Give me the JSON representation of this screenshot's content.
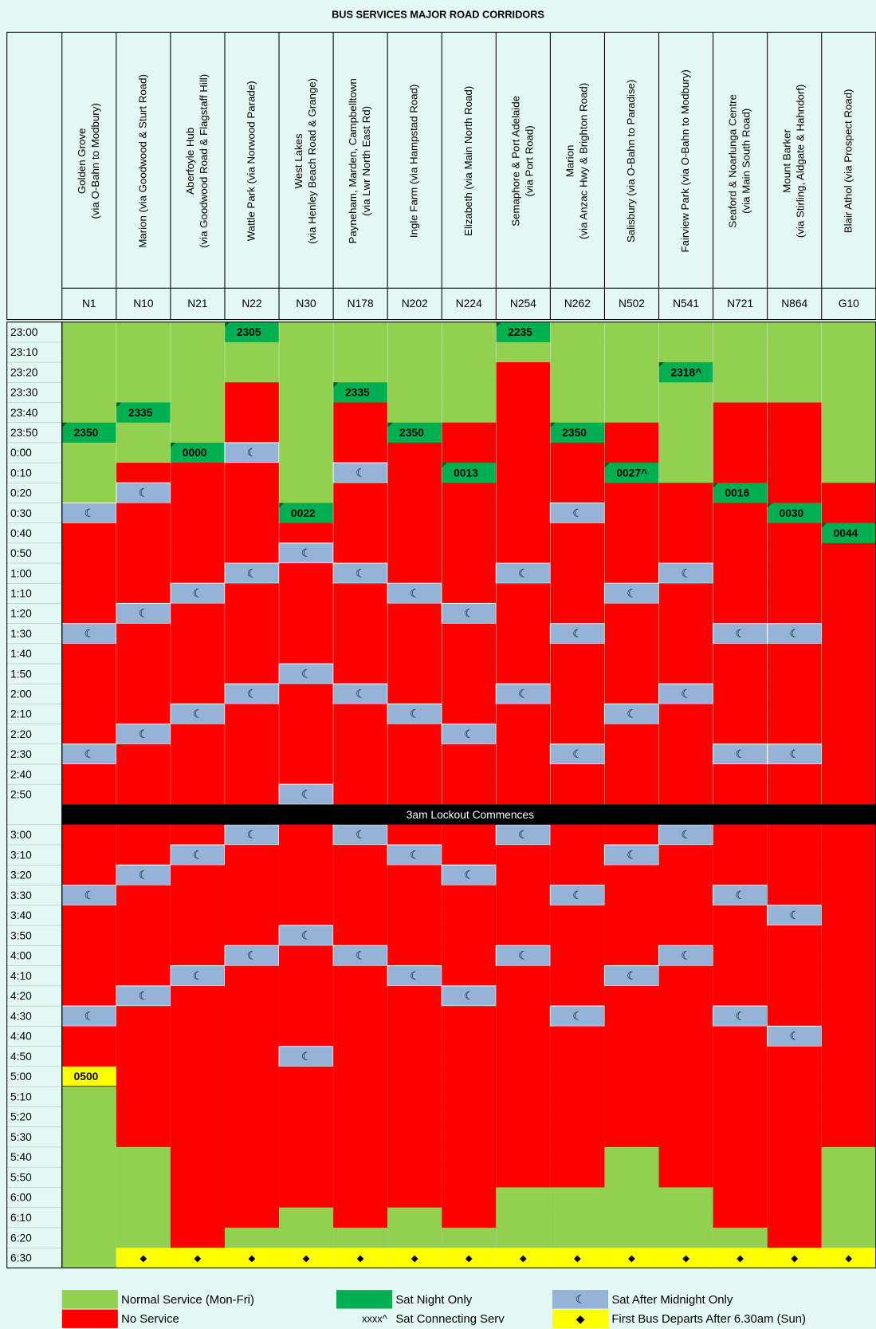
{
  "title": "BUS SERVICES MAJOR ROAD CORRIDORS",
  "lockout": "3am Lockout Commences",
  "colors": {
    "G": "#92d050",
    "R": "#ff0000",
    "S": "#00b050",
    "C": "#00b050",
    "M": "#95b3d7",
    "D": "#ffff00",
    "Y": "#ffff00"
  },
  "times": [
    "23:00",
    "23:10",
    "23:20",
    "23:30",
    "23:40",
    "23:50",
    "0:00",
    "0:10",
    "0:20",
    "0:30",
    "0:40",
    "0:50",
    "1:00",
    "1:10",
    "1:20",
    "1:30",
    "1:40",
    "1:50",
    "2:00",
    "2:10",
    "2:20",
    "2:30",
    "2:40",
    "2:50",
    "3:00",
    "3:10",
    "3:20",
    "3:30",
    "3:40",
    "3:50",
    "4:00",
    "4:10",
    "4:20",
    "4:30",
    "4:40",
    "4:50",
    "5:00",
    "5:10",
    "5:20",
    "5:30",
    "5:40",
    "5:50",
    "6:00",
    "6:10",
    "6:20",
    "6:30"
  ],
  "columns": [
    {
      "lines": [
        "Golden Grove",
        "(via O-Bahn to Modbury)"
      ],
      "code": "N1",
      "cells": [
        "G",
        "G",
        "G",
        "G",
        "G",
        {
          "S": "2350"
        },
        "G",
        "G",
        "G",
        "M",
        "R",
        "R",
        "R",
        "R",
        "R",
        "M",
        "R",
        "R",
        "R",
        "R",
        "R",
        "M",
        "R",
        "R",
        "R",
        "R",
        "R",
        "M",
        "R",
        "R",
        "R",
        "R",
        "R",
        "M",
        "R",
        "R",
        {
          "Y": "0500"
        },
        "G",
        "G",
        "G",
        "G",
        "G",
        "G",
        "G",
        "G",
        "G"
      ]
    },
    {
      "lines": [
        "Marion (via Goodwood & Sturt Road)"
      ],
      "code": "N10",
      "cells": [
        "G",
        "G",
        "G",
        "G",
        {
          "S": "2335"
        },
        "G",
        "G",
        "R",
        "M",
        "R",
        "R",
        "R",
        "R",
        "R",
        "M",
        "R",
        "R",
        "R",
        "R",
        "R",
        "M",
        "R",
        "R",
        "R",
        "R",
        "R",
        "M",
        "R",
        "R",
        "R",
        "R",
        "R",
        "M",
        "R",
        "R",
        "R",
        "R",
        "R",
        "R",
        "R",
        "G",
        "G",
        "G",
        "G",
        "G",
        "D"
      ]
    },
    {
      "lines": [
        "Aberfoyle Hub",
        "(via Goodwood Road & Flagstaff Hill)"
      ],
      "code": "N21",
      "cells": [
        "G",
        "G",
        "G",
        "G",
        "G",
        "G",
        {
          "S": "0000"
        },
        "R",
        "R",
        "R",
        "R",
        "R",
        "R",
        "M",
        "R",
        "R",
        "R",
        "R",
        "R",
        "M",
        "R",
        "R",
        "R",
        "R",
        "R",
        "M",
        "R",
        "R",
        "R",
        "R",
        "R",
        "M",
        "R",
        "R",
        "R",
        "R",
        "R",
        "R",
        "R",
        "R",
        "R",
        "R",
        "R",
        "R",
        "R",
        "D"
      ]
    },
    {
      "lines": [
        "Wattle Park (via Norwood Parade)"
      ],
      "code": "N22",
      "cells": [
        {
          "S": "2305"
        },
        "G",
        "G",
        "R",
        "R",
        "R",
        "M",
        "R",
        "R",
        "R",
        "R",
        "R",
        "M",
        "R",
        "R",
        "R",
        "R",
        "R",
        "M",
        "R",
        "R",
        "R",
        "R",
        "R",
        "M",
        "R",
        "R",
        "R",
        "R",
        "R",
        "M",
        "R",
        "R",
        "R",
        "R",
        "R",
        "R",
        "R",
        "R",
        "R",
        "R",
        "R",
        "R",
        "R",
        "G",
        "D"
      ]
    },
    {
      "lines": [
        "West Lakes",
        "(via Henley Beach Road & Grange)"
      ],
      "code": "N30",
      "cells": [
        "G",
        "G",
        "G",
        "G",
        "G",
        "G",
        "G",
        "G",
        "G",
        {
          "S": "0022"
        },
        "R",
        "M",
        "R",
        "R",
        "R",
        "R",
        "R",
        "M",
        "R",
        "R",
        "R",
        "R",
        "R",
        "M",
        "R",
        "R",
        "R",
        "R",
        "R",
        "M",
        "R",
        "R",
        "R",
        "R",
        "R",
        "M",
        "R",
        "R",
        "R",
        "R",
        "R",
        "R",
        "R",
        "G",
        "G",
        "D"
      ]
    },
    {
      "lines": [
        "Payneham, Marden, Campbelltown",
        "(via Lwr North East Rd)"
      ],
      "code": "N178",
      "cells": [
        "G",
        "G",
        "G",
        {
          "S": "2335"
        },
        "R",
        "R",
        "R",
        "M",
        "R",
        "R",
        "R",
        "R",
        "M",
        "R",
        "R",
        "R",
        "R",
        "R",
        "M",
        "R",
        "R",
        "R",
        "R",
        "R",
        "M",
        "R",
        "R",
        "R",
        "R",
        "R",
        "M",
        "R",
        "R",
        "R",
        "R",
        "R",
        "R",
        "R",
        "R",
        "R",
        "R",
        "R",
        "R",
        "R",
        "G",
        "D"
      ]
    },
    {
      "lines": [
        "Ingle Farm (via Hampstad Road)"
      ],
      "code": "N202",
      "cells": [
        "G",
        "G",
        "G",
        "G",
        "G",
        {
          "S": "2350"
        },
        "R",
        "R",
        "R",
        "R",
        "R",
        "R",
        "R",
        "M",
        "R",
        "R",
        "R",
        "R",
        "R",
        "M",
        "R",
        "R",
        "R",
        "R",
        "R",
        "M",
        "R",
        "R",
        "R",
        "R",
        "R",
        "M",
        "R",
        "R",
        "R",
        "R",
        "R",
        "R",
        "R",
        "R",
        "R",
        "R",
        "R",
        "G",
        "G",
        "D"
      ]
    },
    {
      "lines": [
        "Elizabeth (via Main North Road)"
      ],
      "code": "N224",
      "cells": [
        "G",
        "G",
        "G",
        "G",
        "G",
        "R",
        "R",
        {
          "S": "0013"
        },
        "R",
        "R",
        "R",
        "R",
        "R",
        "R",
        "M",
        "R",
        "R",
        "R",
        "R",
        "R",
        "M",
        "R",
        "R",
        "R",
        "R",
        "R",
        "M",
        "R",
        "R",
        "R",
        "R",
        "R",
        "M",
        "R",
        "R",
        "R",
        "R",
        "R",
        "R",
        "R",
        "R",
        "R",
        "R",
        "R",
        "G",
        "D"
      ]
    },
    {
      "lines": [
        "Semaphore & Port Adelaide",
        "(via Port Road)"
      ],
      "code": "N254",
      "cells": [
        {
          "S": "2235"
        },
        "G",
        "R",
        "R",
        "R",
        "R",
        "R",
        "R",
        "R",
        "R",
        "R",
        "R",
        "M",
        "R",
        "R",
        "R",
        "R",
        "R",
        "M",
        "R",
        "R",
        "R",
        "R",
        "R",
        "M",
        "R",
        "R",
        "R",
        "R",
        "R",
        "M",
        "R",
        "R",
        "R",
        "R",
        "R",
        "R",
        "R",
        "R",
        "R",
        "R",
        "R",
        "G",
        "G",
        "G",
        "D"
      ]
    },
    {
      "lines": [
        "Marion",
        "(via Anzac Hwy & Brighton Road)"
      ],
      "code": "N262",
      "cells": [
        "G",
        "G",
        "G",
        "G",
        "G",
        {
          "S": "2350"
        },
        "R",
        "R",
        "R",
        "M",
        "R",
        "R",
        "R",
        "R",
        "R",
        "M",
        "R",
        "R",
        "R",
        "R",
        "R",
        "M",
        "R",
        "R",
        "R",
        "R",
        "R",
        "M",
        "R",
        "R",
        "R",
        "R",
        "R",
        "M",
        "R",
        "R",
        "R",
        "R",
        "R",
        "R",
        "R",
        "R",
        "G",
        "G",
        "G",
        "D"
      ]
    },
    {
      "lines": [
        "Salisbury (via O-Bahn to Paradise)"
      ],
      "code": "N502",
      "cells": [
        "G",
        "G",
        "G",
        "G",
        "G",
        "R",
        "R",
        {
          "C": "0027^"
        },
        "R",
        "R",
        "R",
        "R",
        "R",
        "M",
        "R",
        "R",
        "R",
        "R",
        "R",
        "M",
        "R",
        "R",
        "R",
        "R",
        "R",
        "M",
        "R",
        "R",
        "R",
        "R",
        "R",
        "M",
        "R",
        "R",
        "R",
        "R",
        "R",
        "R",
        "R",
        "R",
        "G",
        "G",
        "G",
        "G",
        "G",
        "D"
      ]
    },
    {
      "lines": [
        "Fairview Park (via O-Bahn to Modbury)"
      ],
      "code": "N541",
      "cells": [
        "G",
        "G",
        {
          "C": "2318^"
        },
        "G",
        "G",
        "G",
        "G",
        "G",
        "R",
        "R",
        "R",
        "R",
        "M",
        "R",
        "R",
        "R",
        "R",
        "R",
        "M",
        "R",
        "R",
        "R",
        "R",
        "R",
        "M",
        "R",
        "R",
        "R",
        "R",
        "R",
        "M",
        "R",
        "R",
        "R",
        "R",
        "R",
        "R",
        "R",
        "R",
        "R",
        "R",
        "R",
        "G",
        "G",
        "G",
        "D"
      ]
    },
    {
      "lines": [
        "Seaford & Noarlunga Centre",
        "(via Main South Road)"
      ],
      "code": "N721",
      "cells": [
        "G",
        "G",
        "G",
        "G",
        "R",
        "R",
        "R",
        "R",
        {
          "S": "0016"
        },
        "R",
        "R",
        "R",
        "R",
        "R",
        "R",
        "M",
        "R",
        "R",
        "R",
        "R",
        "R",
        "M",
        "R",
        "R",
        "R",
        "R",
        "R",
        "M",
        "R",
        "R",
        "R",
        "R",
        "R",
        "M",
        "R",
        "R",
        "R",
        "R",
        "R",
        "R",
        "R",
        "R",
        "R",
        "R",
        "G",
        "D"
      ]
    },
    {
      "lines": [
        "Mount Barker",
        "(via Stirling, Aldgate & Hahndorf)"
      ],
      "code": "N864",
      "cells": [
        "G",
        "G",
        "G",
        "G",
        "R",
        "R",
        "R",
        "R",
        "R",
        {
          "S": "0030"
        },
        "R",
        "R",
        "R",
        "R",
        "R",
        "M",
        "R",
        "R",
        "R",
        "R",
        "R",
        "M",
        "R",
        "R",
        "R",
        "R",
        "R",
        "R",
        "M",
        "R",
        "R",
        "R",
        "R",
        "R",
        "M",
        "R",
        "R",
        "R",
        "R",
        "R",
        "R",
        "R",
        "R",
        "R",
        "R",
        "D"
      ]
    },
    {
      "lines": [
        "Blair Athol (via Prospect Road)"
      ],
      "code": "G10",
      "cells": [
        "G",
        "G",
        "G",
        "G",
        "G",
        "G",
        "G",
        "G",
        "R",
        "R",
        {
          "S": "0044"
        },
        "R",
        "R",
        "R",
        "R",
        "R",
        "R",
        "R",
        "R",
        "R",
        "R",
        "R",
        "R",
        "R",
        "R",
        "R",
        "R",
        "R",
        "R",
        "R",
        "R",
        "R",
        "R",
        "R",
        "R",
        "R",
        "R",
        "R",
        "R",
        "R",
        "G",
        "G",
        "G",
        "G",
        "G",
        "D"
      ]
    }
  ],
  "legend": [
    {
      "color": "#92d050",
      "text": "Normal Service (Mon-Fri)"
    },
    {
      "color": "#ff0000",
      "text": "No Service"
    },
    {
      "color": "#00b050",
      "text": "Sat Night Only"
    },
    {
      "symbol": "xxxx^",
      "text": "Sat Connecting Serv"
    },
    {
      "color": "#95b3d7",
      "symbol": "☾",
      "text": "Sat After Midnight Only"
    },
    {
      "color": "#ffff00",
      "symbol": "◆",
      "text": "First Bus Departs After 6.30am (Sun)"
    }
  ]
}
